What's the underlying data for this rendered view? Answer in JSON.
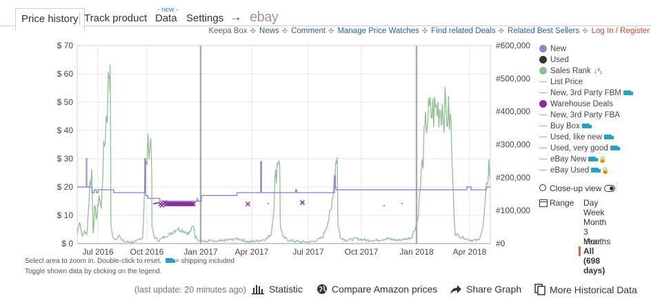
{
  "tabs": {
    "price_history": "Price history",
    "track_product": "Track product",
    "data": "Data",
    "data_badge": "- new -",
    "settings": "Settings",
    "arrow": "→",
    "ebay": "ebay"
  },
  "links": {
    "keepa_box": "Keepa Box",
    "news": "News",
    "comment": "Comment",
    "manage": "Manage Price Watches",
    "deals": "Find related Deals",
    "best_sellers": "Related Best Sellers",
    "login": "Log In / Register",
    "separator": "✣"
  },
  "chart_data": {
    "type": "line",
    "x_ticks": [
      "Jul 2016",
      "Oct 2016",
      "Jan 2017",
      "Apr 2017",
      "Jul 2017",
      "Oct 2017",
      "Jan 2018",
      "Apr 2018"
    ],
    "y_left_ticks": [
      "$ 70",
      "$ 60",
      "$ 50",
      "$ 40",
      "$ 30",
      "$ 20",
      "$ 10",
      "$ 0"
    ],
    "y_right_ticks": [
      "#600,000",
      "#500,000",
      "#400,000",
      "#300,000",
      "#200,000",
      "#100,000",
      "#0"
    ],
    "ylim_price": [
      0,
      70
    ],
    "ylim_rank": [
      0,
      600000
    ],
    "colors": {
      "new": "#8888cc",
      "used": "#333333",
      "sales_rank": "#8fbf8f",
      "warehouse": "#8b2aa0",
      "grid": "#e6e6e6"
    },
    "series": [
      {
        "name": "New",
        "points": [
          [
            0,
            20
          ],
          [
            0.44,
            20
          ],
          [
            0.44,
            30
          ],
          [
            0.46,
            30
          ],
          [
            0.46,
            20
          ],
          [
            0.71,
            20
          ],
          [
            0.71,
            18
          ],
          [
            0.81,
            18
          ],
          [
            0.81,
            19
          ],
          [
            0.92,
            19
          ],
          [
            0.92,
            18
          ],
          [
            1.01,
            18
          ],
          [
            1.01,
            19
          ],
          [
            1.77,
            19
          ],
          [
            1.77,
            18
          ],
          [
            3.27,
            18
          ],
          [
            3.27,
            30
          ],
          [
            3.31,
            30
          ],
          [
            3.31,
            17
          ],
          [
            3.42,
            17
          ],
          [
            3.42,
            16
          ],
          [
            3.49,
            16
          ],
          [
            3.49,
            16
          ],
          [
            3.96,
            16
          ],
          [
            3.96,
            16
          ],
          [
            4.0,
            16
          ],
          [
            4.0,
            15
          ],
          [
            5.81,
            15
          ],
          [
            5.81,
            16
          ],
          [
            5.83,
            16
          ],
          [
            5.83,
            15
          ],
          [
            6.01,
            15
          ],
          [
            6.01,
            17
          ],
          [
            7.73,
            17
          ],
          [
            7.73,
            18
          ],
          [
            8.88,
            18
          ],
          [
            8.88,
            29
          ],
          [
            8.92,
            29
          ],
          [
            8.92,
            18
          ],
          [
            10.57,
            18
          ],
          [
            10.57,
            19
          ],
          [
            10.62,
            19
          ],
          [
            10.62,
            18
          ],
          [
            12.45,
            18
          ],
          [
            12.45,
            24
          ],
          [
            12.5,
            24
          ],
          [
            12.5,
            20
          ],
          [
            12.52,
            20
          ],
          [
            12.52,
            19
          ],
          [
            16.33,
            19
          ],
          [
            16.33,
            19
          ],
          [
            18.86,
            19
          ],
          [
            18.86,
            20
          ],
          [
            19.07,
            20
          ],
          [
            19.07,
            19
          ],
          [
            19.81,
            19
          ],
          [
            19.81,
            20
          ],
          [
            20.0,
            20
          ]
        ]
      },
      {
        "name": "Used",
        "points": [
          [
            3.68,
            14
          ],
          [
            3.96,
            14.5
          ],
          [
            4.03,
            14
          ]
        ]
      },
      {
        "name": "Warehouse Deals",
        "points": [
          [
            4.03,
            14
          ],
          [
            4.1,
            13.5
          ],
          [
            4.17,
            14
          ],
          [
            4.24,
            14.5
          ],
          [
            4.31,
            14
          ],
          [
            4.38,
            14
          ],
          [
            4.45,
            14
          ],
          [
            4.52,
            14
          ],
          [
            4.59,
            14
          ],
          [
            4.66,
            14
          ],
          [
            4.73,
            14
          ],
          [
            4.8,
            14
          ],
          [
            4.87,
            14
          ],
          [
            4.94,
            14
          ],
          [
            5.01,
            14
          ],
          [
            5.08,
            14
          ],
          [
            5.15,
            14
          ],
          [
            5.22,
            14
          ],
          [
            5.29,
            14
          ],
          [
            5.36,
            14
          ],
          [
            5.42,
            14
          ],
          [
            5.49,
            14
          ],
          [
            5.56,
            14
          ],
          [
            5.63,
            14
          ],
          [
            8.26,
            14
          ],
          [
            10.9,
            14.5
          ]
        ]
      },
      {
        "name": "Sales Rank",
        "points": [
          [
            0.0,
            30000
          ],
          [
            0.11,
            70000
          ],
          [
            0.17,
            50000
          ],
          [
            0.26,
            20000
          ],
          [
            0.35,
            40000
          ],
          [
            0.46,
            25000
          ],
          [
            0.53,
            90000
          ],
          [
            0.61,
            180000
          ],
          [
            0.7,
            220000
          ],
          [
            0.77,
            35000
          ],
          [
            0.84,
            100000
          ],
          [
            0.95,
            80000
          ],
          [
            1.06,
            150000
          ],
          [
            1.16,
            100000
          ],
          [
            1.24,
            230000
          ],
          [
            1.32,
            300000
          ],
          [
            1.4,
            380000
          ],
          [
            1.46,
            420000
          ],
          [
            1.54,
            530000
          ],
          [
            1.58,
            540000
          ],
          [
            1.61,
            400000
          ],
          [
            1.63,
            60000
          ],
          [
            1.72,
            20000
          ],
          [
            1.86,
            10000
          ],
          [
            2.04,
            30000
          ],
          [
            2.15,
            10000
          ],
          [
            2.32,
            5000
          ],
          [
            2.85,
            5000
          ],
          [
            3.17,
            20000
          ],
          [
            3.28,
            200000
          ],
          [
            3.38,
            260000
          ],
          [
            3.48,
            310000
          ],
          [
            3.56,
            310000
          ],
          [
            3.6,
            280000
          ],
          [
            3.62,
            50000
          ],
          [
            3.73,
            20000
          ],
          [
            3.94,
            10000
          ],
          [
            4.22,
            20000
          ],
          [
            4.53,
            30000
          ],
          [
            4.82,
            45000
          ],
          [
            5.12,
            40000
          ],
          [
            5.41,
            30000
          ],
          [
            5.59,
            50000
          ],
          [
            5.66,
            50000
          ],
          [
            5.72,
            20000
          ],
          [
            5.94,
            10000
          ],
          [
            6.23,
            5000
          ],
          [
            6.45,
            10000
          ],
          [
            6.63,
            5000
          ],
          [
            7.2,
            10000
          ],
          [
            7.76,
            15000
          ],
          [
            8.33,
            5000
          ],
          [
            8.89,
            10000
          ],
          [
            9.18,
            15000
          ],
          [
            9.4,
            30000
          ],
          [
            9.5,
            100000
          ],
          [
            9.57,
            180000
          ],
          [
            9.72,
            260000
          ],
          [
            9.8,
            270000
          ],
          [
            9.83,
            60000
          ],
          [
            9.95,
            20000
          ],
          [
            10.24,
            10000
          ],
          [
            10.81,
            5000
          ],
          [
            11.31,
            5000
          ],
          [
            11.6,
            10000
          ],
          [
            11.9,
            20000
          ],
          [
            12.3,
            100000
          ],
          [
            12.44,
            200000
          ],
          [
            12.55,
            270000
          ],
          [
            12.59,
            260000
          ],
          [
            12.62,
            60000
          ],
          [
            12.73,
            20000
          ],
          [
            13.0,
            10000
          ],
          [
            13.5,
            15000
          ],
          [
            14.0,
            10000
          ],
          [
            14.5,
            10000
          ],
          [
            15.0,
            15000
          ],
          [
            15.5,
            10000
          ],
          [
            16.0,
            15000
          ],
          [
            16.2,
            20000
          ],
          [
            16.48,
            70000
          ],
          [
            16.65,
            200000
          ],
          [
            16.79,
            300000
          ],
          [
            16.9,
            370000
          ],
          [
            17.05,
            390000
          ],
          [
            17.26,
            400000
          ],
          [
            17.47,
            410000
          ],
          [
            17.67,
            420000
          ],
          [
            17.85,
            400000
          ],
          [
            18.02,
            380000
          ],
          [
            18.1,
            350000
          ],
          [
            18.2,
            150000
          ],
          [
            18.3,
            30000
          ],
          [
            18.59,
            20000
          ],
          [
            19.09,
            10000
          ],
          [
            19.44,
            10000
          ],
          [
            19.65,
            50000
          ],
          [
            19.76,
            120000
          ],
          [
            19.86,
            200000
          ],
          [
            19.93,
            240000
          ],
          [
            20.0,
            200000
          ]
        ]
      }
    ]
  },
  "legend": {
    "items": [
      {
        "label": "New",
        "marker": "dot",
        "color": "#8888cc"
      },
      {
        "label": "Used",
        "marker": "dot",
        "color": "#333333"
      },
      {
        "label": "Sales Rank",
        "marker": "dot",
        "color": "#8fbf8f",
        "extra": "↓⁹₁"
      },
      {
        "label": "List Price",
        "marker": "dash"
      },
      {
        "label": "New, 3rd Party FBM",
        "marker": "dash",
        "truck": true
      },
      {
        "label": "Warehouse Deals",
        "marker": "dot",
        "color": "#8b2aa0"
      },
      {
        "label": "New, 3rd Party FBA",
        "marker": "dash"
      },
      {
        "label": "Buy Box",
        "marker": "dash",
        "truck": true
      },
      {
        "label": "Used, like new",
        "marker": "dash",
        "truck": true
      },
      {
        "label": "Used, very good",
        "marker": "dash",
        "truck": true
      },
      {
        "label": "eBay New",
        "marker": "dash",
        "truck": true,
        "lock": true
      },
      {
        "label": "eBay Used",
        "marker": "dash",
        "truck": true,
        "lock": true
      }
    ]
  },
  "closeup": {
    "label": "Close-up view"
  },
  "range": {
    "label": "Range",
    "options": [
      "Day",
      "Week",
      "Month",
      "3 Months",
      "Year"
    ],
    "selected": "All (698 days)"
  },
  "notes": {
    "line1_a": "Select area to zoom in. Double-click to reset.",
    "line1_b": "= shipping included",
    "line2": "Toggle shown data by clicking on the legend."
  },
  "footer": {
    "last_update": "(last update: 20 minutes ago)",
    "statistic": "Statistic",
    "compare": "Compare Amazon prices",
    "share": "Share Graph",
    "more": "More Historical Data"
  }
}
